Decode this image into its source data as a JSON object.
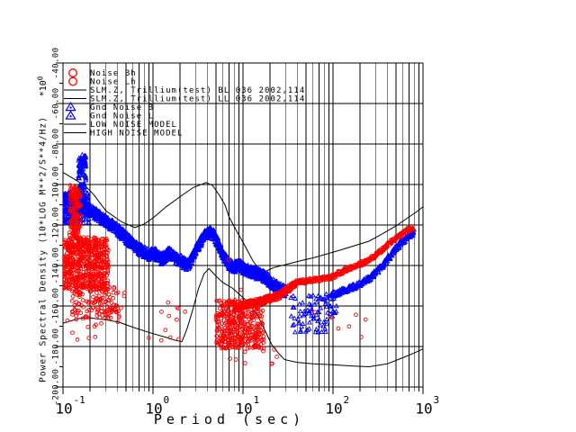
{
  "colors": {
    "background": "#ffffff",
    "axis": "#000000",
    "data_red": "#ff0000",
    "data_blue": "#0000ff",
    "model_black": "#000000"
  },
  "chart_data": {
    "type": "scatter",
    "title": "",
    "xlabel": "Period (sec)",
    "ylabel": "Power Spectral Density (10*LOG M**2/S**4/Hz)",
    "y_multiplier_base": "*10",
    "y_multiplier_exp": "0",
    "x_scale": "log",
    "x_range_sec": [
      0.1,
      1000
    ],
    "y_range_db": [
      -200,
      -40
    ],
    "grid": {
      "x": "log mantissa lines each decade",
      "y": "major line every 20 dB"
    },
    "x_ticks": [
      {
        "base": "10",
        "exp": "-1"
      },
      {
        "base": "10",
        "exp": "0"
      },
      {
        "base": "10",
        "exp": "1"
      },
      {
        "base": "10",
        "exp": "2"
      },
      {
        "base": "10",
        "exp": "3"
      }
    ],
    "y_tick_labels": [
      "-40.00",
      "-60.00",
      "-80.00",
      "-100.00",
      "-120.00",
      "-140.00",
      "-160.00",
      "-180.00",
      "-200.00"
    ],
    "legend": {
      "rows": [
        {
          "label": "Noise Bh",
          "symbol": "circle",
          "color": "#ff0000"
        },
        {
          "label": "Noise Lh",
          "symbol": "circle",
          "color": "#ff0000"
        },
        {
          "label": "SLM.Z, Trillium(test) BL 036 2002,114",
          "symbol": "line",
          "color": "#000000"
        },
        {
          "label": "SLM.Z, Trillium(test) LL 036 2002,114",
          "symbol": "line",
          "color": "#000000"
        },
        {
          "label": "Gnd Noise B",
          "symbol": "triangle",
          "color": "#0000ff"
        },
        {
          "label": "Gnd Noise L",
          "symbol": "triangle",
          "color": "#0000ff"
        },
        {
          "label": "LOW NOISE MODEL",
          "symbol": "line",
          "color": "#000000"
        },
        {
          "label": "HIGH NOISE MODEL",
          "symbol": "line",
          "color": "#000000"
        }
      ]
    },
    "model_lines": [
      {
        "name": "high-noise-model",
        "points": [
          [
            0.1,
            -94
          ],
          [
            0.13,
            -97
          ],
          [
            0.18,
            -101
          ],
          [
            0.22,
            -105
          ],
          [
            0.3,
            -113
          ],
          [
            0.45,
            -118.5
          ],
          [
            0.63,
            -121.3
          ],
          [
            0.8,
            -119.5
          ],
          [
            1.0,
            -116.5
          ],
          [
            1.4,
            -111
          ],
          [
            2.0,
            -106
          ],
          [
            2.8,
            -101.5
          ],
          [
            3.9,
            -99
          ],
          [
            4.6,
            -100.5
          ],
          [
            5.5,
            -105.5
          ],
          [
            6.3,
            -110
          ],
          [
            7.0,
            -116
          ],
          [
            8.5,
            -123
          ],
          [
            10,
            -128.5
          ],
          [
            13,
            -138
          ],
          [
            15,
            -141.5
          ],
          [
            17.5,
            -143
          ],
          [
            22,
            -141
          ],
          [
            30,
            -139.5
          ],
          [
            45,
            -137.5
          ],
          [
            63,
            -136
          ],
          [
            90,
            -134
          ],
          [
            118,
            -132.5
          ],
          [
            180,
            -130
          ],
          [
            251,
            -128
          ],
          [
            350,
            -124.5
          ],
          [
            500,
            -120.5
          ],
          [
            675,
            -116.5
          ],
          [
            850,
            -113.5
          ],
          [
            1000,
            -111
          ]
        ]
      },
      {
        "name": "low-noise-model",
        "points": [
          [
            0.1,
            -168.5
          ],
          [
            0.15,
            -166.2
          ],
          [
            0.19,
            -165.8
          ],
          [
            0.3,
            -166.8
          ],
          [
            0.42,
            -168
          ],
          [
            0.6,
            -170.5
          ],
          [
            0.9,
            -173
          ],
          [
            1.4,
            -175.5
          ],
          [
            1.8,
            -177
          ],
          [
            2.1,
            -177.6
          ],
          [
            2.4,
            -171
          ],
          [
            2.8,
            -161
          ],
          [
            3.2,
            -151.5
          ],
          [
            3.7,
            -144
          ],
          [
            4.2,
            -141.5
          ],
          [
            5.0,
            -145.2
          ],
          [
            6.0,
            -148.5
          ],
          [
            7.6,
            -151.1
          ],
          [
            9.0,
            -154
          ],
          [
            10.7,
            -157
          ],
          [
            12.5,
            -161
          ],
          [
            14.8,
            -165.3
          ],
          [
            17.5,
            -172
          ],
          [
            21,
            -179.3
          ],
          [
            25,
            -183.5
          ],
          [
            29,
            -186.5
          ],
          [
            40,
            -187.8
          ],
          [
            60,
            -188.6
          ],
          [
            100,
            -189
          ],
          [
            160,
            -189.6
          ],
          [
            251,
            -190
          ],
          [
            400,
            -188.6
          ],
          [
            600,
            -185.5
          ],
          [
            800,
            -183.2
          ],
          [
            1000,
            -181.2
          ]
        ]
      },
      {
        "name": "slm-response-ll",
        "points": [
          [
            14,
            -158.5
          ],
          [
            18,
            -156.8
          ],
          [
            24,
            -154.8
          ],
          [
            30,
            -151.8
          ],
          [
            36,
            -149.6
          ],
          [
            45,
            -148.2
          ],
          [
            60,
            -147.2
          ],
          [
            80,
            -146.4
          ],
          [
            100,
            -145.6
          ],
          [
            115,
            -143.8
          ],
          [
            140,
            -142.2
          ],
          [
            180,
            -140.2
          ],
          [
            230,
            -138.2
          ],
          [
            280,
            -135.8
          ],
          [
            340,
            -132.8
          ],
          [
            420,
            -129.2
          ],
          [
            500,
            -126.6
          ],
          [
            600,
            -124.1
          ],
          [
            700,
            -122.2
          ],
          [
            770,
            -121.2
          ]
        ]
      },
      {
        "name": "slm-response-bl",
        "points": [
          [
            95,
            -154.6
          ],
          [
            140,
            -152.2
          ],
          [
            200,
            -149.2
          ],
          [
            260,
            -146.2
          ],
          [
            340,
            -141.2
          ],
          [
            430,
            -135.6
          ],
          [
            520,
            -130.8
          ],
          [
            600,
            -128.2
          ],
          [
            700,
            -125.2
          ],
          [
            800,
            -123.4
          ]
        ]
      }
    ],
    "scatter_series": [
      {
        "name": "gnd-noise-main-band",
        "marker": "triangle",
        "color": "#0000ff",
        "mode": "band",
        "seed": 11,
        "spread": 2.8,
        "step_dec": 0.005,
        "per_step": 3,
        "core": [
          [
            0.1,
            -108
          ],
          [
            0.11,
            -106.5
          ],
          [
            0.12,
            -106.5
          ],
          [
            0.135,
            -108.5
          ],
          [
            0.15,
            -110
          ],
          [
            0.17,
            -111
          ],
          [
            0.2,
            -112.5
          ],
          [
            0.24,
            -115
          ],
          [
            0.3,
            -118
          ],
          [
            0.42,
            -123
          ],
          [
            0.55,
            -128
          ],
          [
            0.7,
            -132
          ],
          [
            0.9,
            -134.5
          ],
          [
            1.05,
            -134
          ],
          [
            1.25,
            -137
          ],
          [
            1.5,
            -134
          ],
          [
            1.8,
            -136.5
          ],
          [
            2.1,
            -138
          ],
          [
            2.4,
            -140
          ],
          [
            2.7,
            -136.5
          ],
          [
            3.0,
            -132
          ],
          [
            3.4,
            -128
          ],
          [
            3.9,
            -124.5
          ],
          [
            4.3,
            -123
          ],
          [
            4.8,
            -125.5
          ],
          [
            5.4,
            -130
          ],
          [
            6.1,
            -135.5
          ],
          [
            7.0,
            -139.5
          ],
          [
            8.0,
            -141
          ],
          [
            9.0,
            -139.5
          ],
          [
            10,
            -141.5
          ],
          [
            12,
            -143
          ],
          [
            14,
            -144
          ],
          [
            16,
            -144.5
          ],
          [
            18,
            -146
          ],
          [
            20,
            -148
          ],
          [
            23,
            -150
          ],
          [
            26,
            -151.5
          ],
          [
            30,
            -153
          ]
        ]
      },
      {
        "name": "gnd-noise-left-cluster",
        "marker": "triangle",
        "color": "#0000ff",
        "mode": "cloud",
        "seed": 12,
        "x_range": [
          0.1,
          0.2
        ],
        "y_range": [
          -119,
          -104
        ],
        "count": 220
      },
      {
        "name": "gnd-noise-spike",
        "marker": "triangle",
        "color": "#0000ff",
        "mode": "cloud",
        "seed": 13,
        "x_range": [
          0.148,
          0.18
        ],
        "y_range": [
          -110,
          -85
        ],
        "count": 130
      },
      {
        "name": "gnd-noise-mid-scatter",
        "marker": "triangle",
        "color": "#0000ff",
        "mode": "cloud",
        "seed": 14,
        "x_range": [
          34,
          110
        ],
        "y_range": [
          -173,
          -154
        ],
        "count": 90
      },
      {
        "name": "gnd-noise-rising-tail",
        "marker": "triangle",
        "color": "#0000ff",
        "mode": "band",
        "seed": 15,
        "spread": 1.4,
        "step_dec": 0.0075,
        "per_step": 2,
        "core": [
          [
            95,
            -154.5
          ],
          [
            140,
            -152
          ],
          [
            200,
            -149
          ],
          [
            260,
            -146
          ],
          [
            340,
            -141
          ],
          [
            430,
            -135.5
          ],
          [
            520,
            -130.5
          ],
          [
            600,
            -128
          ],
          [
            700,
            -125.2
          ],
          [
            800,
            -123.5
          ]
        ]
      },
      {
        "name": "noise-bh-left-upper",
        "marker": "circle",
        "color": "#ff0000",
        "mode": "cloud",
        "seed": 21,
        "x_range": [
          0.118,
          0.158
        ],
        "y_range": [
          -127,
          -100
        ],
        "count": 150
      },
      {
        "name": "noise-bh-left-mass",
        "marker": "circle",
        "color": "#ff0000",
        "mode": "cloud",
        "seed": 22,
        "x_range": [
          0.1,
          0.32
        ],
        "y_range": [
          -152,
          -126
        ],
        "count": 620
      },
      {
        "name": "noise-bh-left-tail",
        "marker": "circle",
        "color": "#ff0000",
        "mode": "cloud",
        "seed": 23,
        "x_range": [
          0.125,
          0.42
        ],
        "y_range": [
          -166,
          -150
        ],
        "count": 130
      },
      {
        "name": "noise-left-sparse",
        "marker": "circle",
        "color": "#ff0000",
        "mode": "cloud",
        "seed": 24,
        "x_range": [
          0.1,
          0.35
        ],
        "y_range": [
          -179,
          -152
        ],
        "count": 18
      },
      {
        "name": "noise-left-sparse2",
        "marker": "circle",
        "color": "#ff0000",
        "mode": "cloud",
        "seed": 25,
        "x_range": [
          0.35,
          0.6
        ],
        "y_range": [
          -170,
          -150
        ],
        "count": 5
      },
      {
        "name": "noise-sec-dots",
        "marker": "circle",
        "color": "#ff0000",
        "mode": "cloud",
        "seed": 26,
        "x_range": [
          0.65,
          2.3
        ],
        "y_range": [
          -177,
          -158
        ],
        "count": 12
      },
      {
        "name": "noise-lh-mid-cluster",
        "marker": "circle",
        "color": "#ff0000",
        "mode": "cloud",
        "seed": 27,
        "x_range": [
          5,
          17
        ],
        "y_range": [
          -181,
          -157
        ],
        "count": 400
      },
      {
        "name": "noise-lh-deep-sparse",
        "marker": "circle",
        "color": "#ff0000",
        "mode": "cloud",
        "seed": 28,
        "x_range": [
          5.5,
          25
        ],
        "y_range": [
          -189,
          -180
        ],
        "count": 11
      },
      {
        "name": "noise-lh-rising-band",
        "marker": "circle",
        "color": "#ff0000",
        "mode": "band",
        "seed": 29,
        "spread": 1.7,
        "step_dec": 0.006,
        "per_step": 3,
        "core": [
          [
            8,
            -161
          ],
          [
            12,
            -159
          ],
          [
            18,
            -157
          ],
          [
            25,
            -155
          ],
          [
            32,
            -151.5
          ],
          [
            40,
            -148.5
          ]
        ]
      },
      {
        "name": "noise-lh-circles-line",
        "marker": "circle",
        "color": "#ff0000",
        "mode": "band",
        "seed": 30,
        "spread": 1.1,
        "step_dec": 0.0075,
        "per_step": 2,
        "core": [
          [
            40,
            -148.3
          ],
          [
            60,
            -147.2
          ],
          [
            80,
            -146.4
          ],
          [
            100,
            -145.6
          ],
          [
            115,
            -143.8
          ],
          [
            140,
            -142.2
          ],
          [
            180,
            -140.2
          ],
          [
            230,
            -138.2
          ],
          [
            280,
            -135.8
          ],
          [
            340,
            -132.8
          ],
          [
            420,
            -129.2
          ],
          [
            500,
            -126.6
          ],
          [
            600,
            -124.1
          ],
          [
            700,
            -122.2
          ],
          [
            770,
            -121.2
          ]
        ]
      },
      {
        "name": "noise-right-outliers",
        "marker": "circle",
        "color": "#ff0000",
        "mode": "cloud",
        "seed": 31,
        "x_range": [
          55,
          320
        ],
        "y_range": [
          -176,
          -162
        ],
        "count": 7
      },
      {
        "name": "noise-single-points",
        "marker": "circle",
        "color": "#ff0000",
        "mode": "points",
        "seed": 32,
        "pts": [
          [
            6.9,
            -137.3
          ],
          [
            9.5,
            -152
          ]
        ]
      }
    ]
  }
}
